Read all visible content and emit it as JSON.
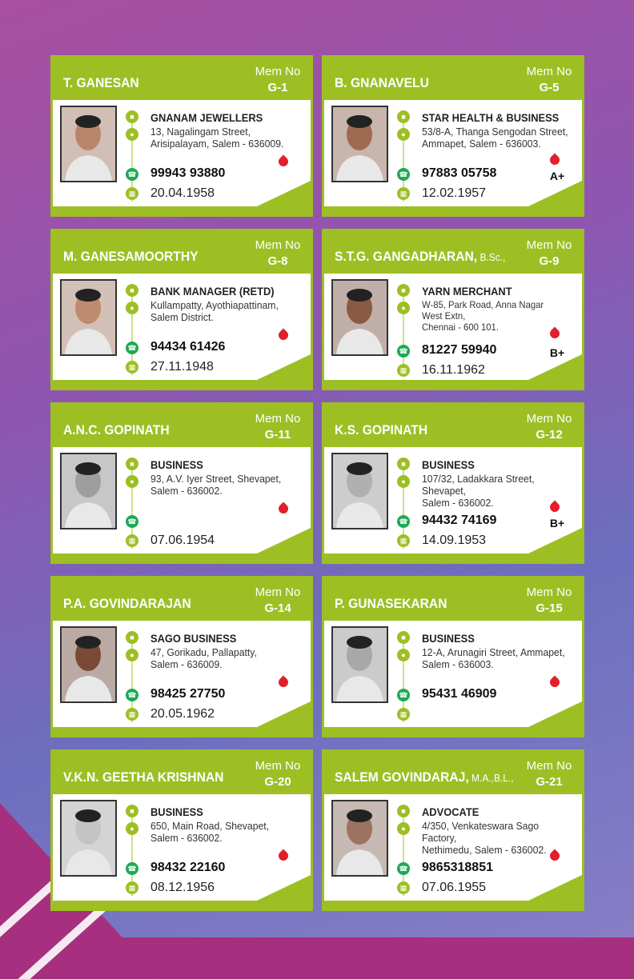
{
  "colors": {
    "accent": "#9dbf24",
    "blood": "#e0202a",
    "whatsapp": "#1fa855"
  },
  "labels": {
    "mem_no": "Mem No"
  },
  "members": [
    {
      "name": "T. GANESAN",
      "suffix": "",
      "mem_no": "G-1",
      "occupation": "GNANAM JEWELLERS",
      "address": "13, Nagalingam Street,\nArisipalayam, Salem - 636009.",
      "phone": "99943 93880",
      "dob": "20.04.1958",
      "blood": ""
    },
    {
      "name": "B. GNANAVELU",
      "suffix": "",
      "mem_no": "G-5",
      "occupation": "STAR HEALTH & BUSINESS",
      "address": "53/8-A, Thanga Sengodan Street,\nAmmapet, Salem - 636003.",
      "phone": "97883 05758",
      "dob": "12.02.1957",
      "blood": "A+"
    },
    {
      "name": "M. GANESAMOORTHY",
      "suffix": "",
      "mem_no": "G-8",
      "occupation": "BANK MANAGER (RETD)",
      "address": "Kullampatty, Ayothiapattinam,\nSalem District.",
      "phone": "94434 61426",
      "dob": "27.11.1948",
      "blood": ""
    },
    {
      "name": "S.T.G. GANGADHARAN,",
      "suffix": " B.Sc.,",
      "mem_no": "G-9",
      "occupation": "YARN MERCHANT",
      "address": "W-85, Park Road, Anna Nagar\nWest Extn,\nChennai - 600 101.",
      "phone": "81227 59940",
      "dob": "16.11.1962",
      "blood": "B+"
    },
    {
      "name": "A.N.C. GOPINATH",
      "suffix": "",
      "mem_no": "G-11",
      "occupation": "BUSINESS",
      "address": "93, A.V. Iyer Street, Shevapet,\nSalem - 636002.",
      "phone": "",
      "dob": "07.06.1954",
      "blood": ""
    },
    {
      "name": "K.S. GOPINATH",
      "suffix": "",
      "mem_no": "G-12",
      "occupation": "BUSINESS",
      "address": "107/32, Ladakkara Street, Shevapet,\nSalem - 636002.",
      "phone": "94432 74169",
      "dob": "14.09.1953",
      "blood": "B+"
    },
    {
      "name": "P.A. GOVINDARAJAN",
      "suffix": "",
      "mem_no": "G-14",
      "occupation": "SAGO BUSINESS",
      "address": "47, Gorikadu, Pallapatty,\nSalem - 636009.",
      "phone": "98425 27750",
      "dob": "20.05.1962",
      "blood": ""
    },
    {
      "name": "P. GUNASEKARAN",
      "suffix": "",
      "mem_no": "G-15",
      "occupation": "BUSINESS",
      "address": "12-A, Arunagiri Street, Ammapet,\nSalem - 636003.",
      "phone": "95431 46909",
      "dob": "",
      "blood": ""
    },
    {
      "name": "V.K.N. GEETHA KRISHNAN",
      "suffix": "",
      "mem_no": "G-20",
      "occupation": "BUSINESS",
      "address": "650, Main Road, Shevapet,\nSalem - 636002.",
      "phone": "98432 22160",
      "dob": "08.12.1956",
      "blood": ""
    },
    {
      "name": "SALEM GOVINDARAJ,",
      "suffix": " M.A.,B.L.,",
      "mem_no": "G-21",
      "occupation": "ADVOCATE",
      "address": "4/350, Venkateswara Sago Factory,\nNethimedu, Salem - 636002.",
      "phone": "9865318851",
      "dob": "07.06.1955",
      "blood": ""
    }
  ]
}
